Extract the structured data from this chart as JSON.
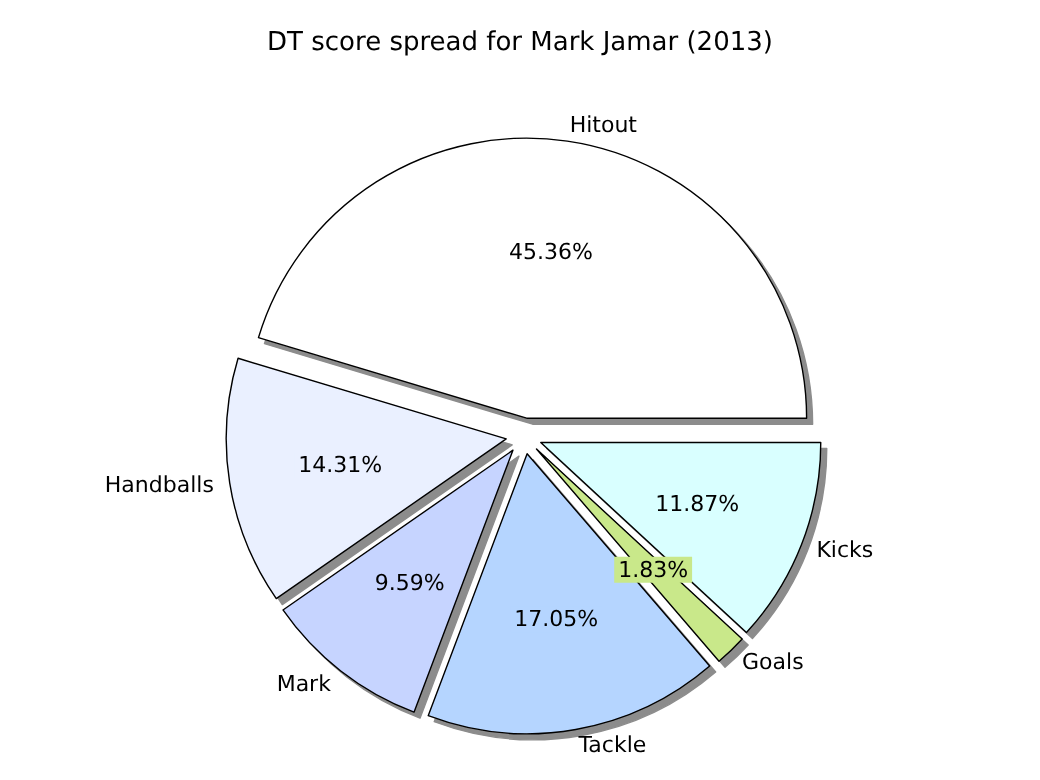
{
  "chart_data": {
    "type": "pie",
    "title": "DT score spread for Mark Jamar (2013)",
    "categories": [
      "Hitout",
      "Handballs",
      "Mark",
      "Tackle",
      "Goals",
      "Kicks"
    ],
    "values": [
      45.36,
      14.31,
      9.59,
      17.05,
      1.83,
      11.87
    ],
    "value_labels": [
      "45.36%",
      "14.31%",
      "9.59%",
      "17.05%",
      "1.83%",
      "11.87%"
    ],
    "colors": [
      "#ffffff",
      "#eaf0ff",
      "#c6d4ff",
      "#b5d5ff",
      "#c9e88a",
      "#d9ffff"
    ],
    "legend": false
  }
}
